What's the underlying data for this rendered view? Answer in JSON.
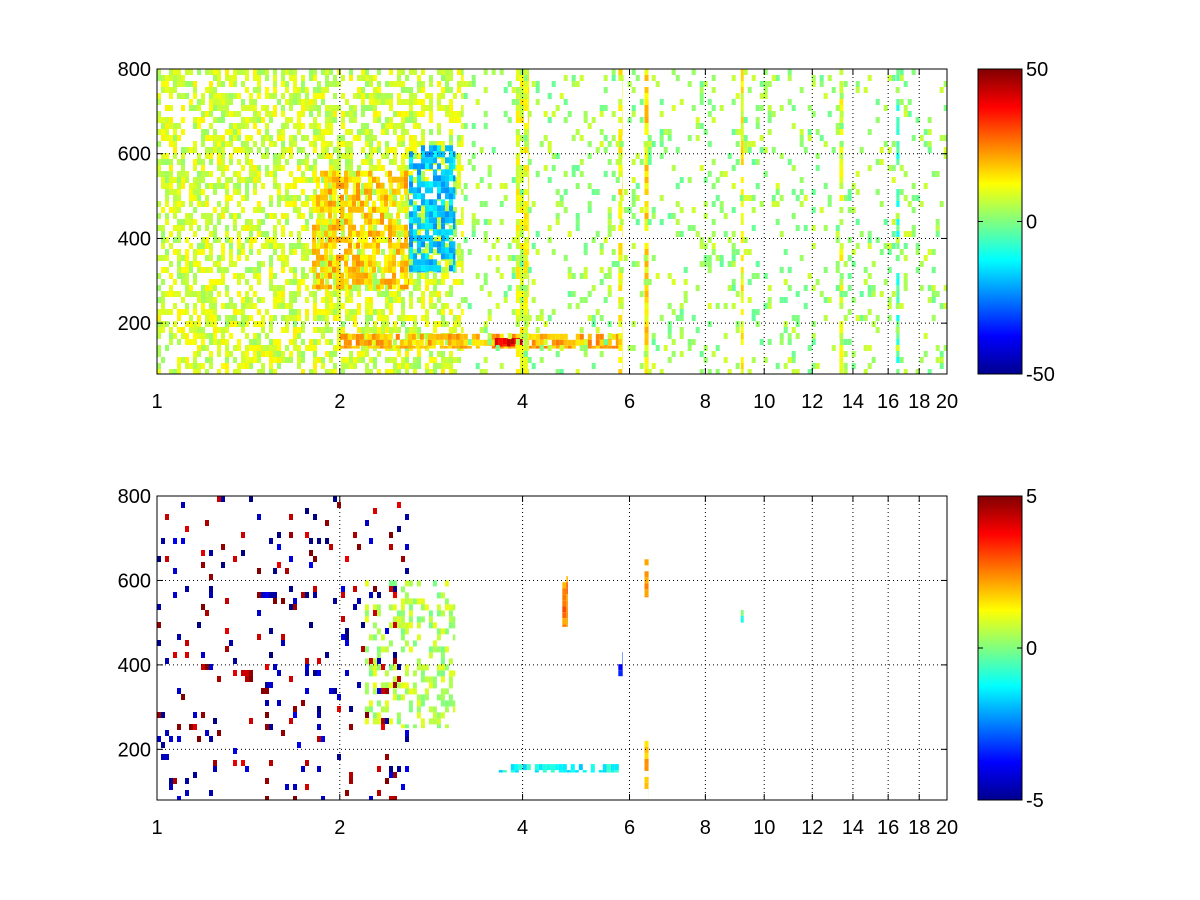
{
  "chart_data": [
    {
      "type": "heatmap",
      "title": "",
      "xlabel": "",
      "ylabel": "",
      "x_scale": "log",
      "xlim": [
        1,
        20
      ],
      "ylim": [
        80,
        800
      ],
      "x_ticks": [
        1,
        2,
        4,
        6,
        8,
        10,
        12,
        14,
        16,
        18,
        20
      ],
      "x_tick_labels": [
        "1",
        "2",
        "4",
        "6",
        "8",
        "10",
        "12",
        "14",
        "16",
        "18",
        "20"
      ],
      "y_ticks": [
        200,
        400,
        600,
        800
      ],
      "y_tick_labels": [
        "200",
        "400",
        "600",
        "800"
      ],
      "grid": true,
      "colormap": "jet",
      "clim": [
        -50,
        50
      ],
      "colorbar_labels": [
        "50",
        "0",
        "-50"
      ],
      "features": [
        {
          "x": [
            1.0,
            3.2
          ],
          "y": [
            80,
            800
          ],
          "value": 8,
          "fill": 0.55
        },
        {
          "x": [
            2.6,
            3.1
          ],
          "y": [
            320,
            620
          ],
          "value": -18,
          "fill": 0.7
        },
        {
          "x": [
            1.8,
            2.6
          ],
          "y": [
            280,
            560
          ],
          "value": 18,
          "fill": 0.6
        },
        {
          "x": [
            2.0,
            5.8
          ],
          "y": [
            140,
            175
          ],
          "value": 20,
          "fill": 0.8
        },
        {
          "x": [
            3.6,
            4.0
          ],
          "y": [
            145,
            165
          ],
          "value": 38,
          "fill": 0.9
        },
        {
          "x": [
            3.9,
            4.1
          ],
          "y": [
            80,
            800
          ],
          "value": 10,
          "fill": 0.8
        },
        {
          "x": [
            5.75,
            5.85
          ],
          "y": [
            80,
            800
          ],
          "value": 12,
          "fill": 0.7
        },
        {
          "x": [
            6.35,
            6.45
          ],
          "y": [
            80,
            800
          ],
          "value": 15,
          "fill": 0.9
        },
        {
          "x": [
            9.15,
            9.25
          ],
          "y": [
            80,
            800
          ],
          "value": 12,
          "fill": 0.6
        },
        {
          "x": [
            13.3,
            13.5
          ],
          "y": [
            80,
            800
          ],
          "value": 10,
          "fill": 0.7
        },
        {
          "x": [
            16.5,
            16.7
          ],
          "y": [
            80,
            800
          ],
          "value": -6,
          "fill": 0.7
        },
        {
          "x": [
            3.2,
            20.0
          ],
          "y": [
            80,
            800
          ],
          "value": 3,
          "fill": 0.14
        }
      ]
    },
    {
      "type": "heatmap",
      "title": "",
      "xlabel": "",
      "ylabel": "",
      "x_scale": "log",
      "xlim": [
        1,
        20
      ],
      "ylim": [
        80,
        800
      ],
      "x_ticks": [
        1,
        2,
        4,
        6,
        8,
        10,
        12,
        14,
        16,
        18,
        20
      ],
      "x_tick_labels": [
        "1",
        "2",
        "4",
        "6",
        "8",
        "10",
        "12",
        "14",
        "16",
        "18",
        "20"
      ],
      "y_ticks": [
        200,
        400,
        600,
        800
      ],
      "y_tick_labels": [
        "200",
        "400",
        "600",
        "800"
      ],
      "grid": true,
      "colormap": "jet",
      "clim": [
        -5,
        5
      ],
      "colorbar_labels": [
        "5",
        "0",
        "-5"
      ],
      "features": [
        {
          "x": [
            2.2,
            3.1
          ],
          "y": [
            250,
            600
          ],
          "value": 0.5,
          "fill": 0.35
        },
        {
          "x": [
            3.6,
            5.8
          ],
          "y": [
            145,
            165
          ],
          "value": -1.2,
          "fill": 0.7
        },
        {
          "x": [
            4.65,
            4.75
          ],
          "y": [
            490,
            610
          ],
          "value": 2.5,
          "fill": 0.9
        },
        {
          "x": [
            5.75,
            5.85
          ],
          "y": [
            360,
            430
          ],
          "value": -3.5,
          "fill": 0.8
        },
        {
          "x": [
            6.35,
            6.45
          ],
          "y": [
            560,
            650
          ],
          "value": 2.0,
          "fill": 0.9
        },
        {
          "x": [
            6.35,
            6.45
          ],
          "y": [
            80,
            220
          ],
          "value": 2.0,
          "fill": 0.7
        },
        {
          "x": [
            9.15,
            9.25
          ],
          "y": [
            500,
            530
          ],
          "value": -0.5,
          "fill": 0.9
        },
        {
          "x": [
            1.0,
            2.6
          ],
          "y": [
            80,
            800
          ],
          "value": -4.5,
          "fill": 0.05
        },
        {
          "x": [
            1.0,
            2.6
          ],
          "y": [
            80,
            800
          ],
          "value": 4.5,
          "fill": 0.04
        }
      ]
    }
  ]
}
